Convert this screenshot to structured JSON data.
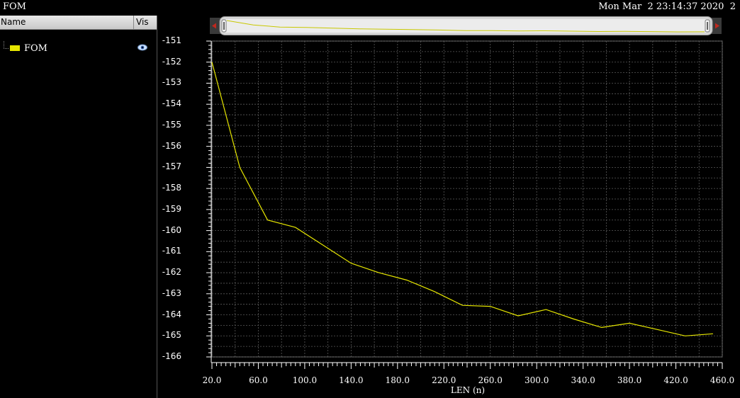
{
  "window": {
    "title": "FOM",
    "timestamp": "Mon Mar  2 23:14:37 2020  2"
  },
  "sidebar": {
    "col_name": "Name",
    "col_vis": "Vis",
    "items": [
      {
        "label": "FOM",
        "color": "#e6e600",
        "icon": "eye-icon"
      }
    ]
  },
  "colors": {
    "background": "#000000",
    "grid": "#5a5a5a",
    "series": "#e6e600",
    "axis": "#ffffff"
  },
  "chart_data": {
    "type": "line",
    "xlabel": "LEN (n)",
    "ylabel": "",
    "xlim": [
      20,
      460
    ],
    "ylim": [
      -166,
      -151
    ],
    "xticks": [
      "20.0",
      "60.0",
      "100.0",
      "140.0",
      "180.0",
      "220.0",
      "260.0",
      "300.0",
      "340.0",
      "380.0",
      "420.0",
      "460.0"
    ],
    "yticks": [
      "-151",
      "-152",
      "-153",
      "-154",
      "-155",
      "-156",
      "-157",
      "-158",
      "-159",
      "-160",
      "-161",
      "-162",
      "-163",
      "-164",
      "-165",
      "-166"
    ],
    "grid": true,
    "series": [
      {
        "color": "#e6e600",
        "x": [
          20,
          44,
          68,
          92,
          116,
          140,
          164,
          188,
          212,
          236,
          260,
          284,
          308,
          332,
          356,
          380,
          404,
          428,
          452
        ],
        "y": [
          -152.0,
          -157.0,
          -159.5,
          -159.85,
          -160.7,
          -161.55,
          -162.0,
          -162.35,
          -162.9,
          -163.55,
          -163.6,
          -164.05,
          -163.75,
          -164.2,
          -164.6,
          -164.4,
          -164.7,
          -165.0,
          -164.9
        ]
      }
    ]
  }
}
